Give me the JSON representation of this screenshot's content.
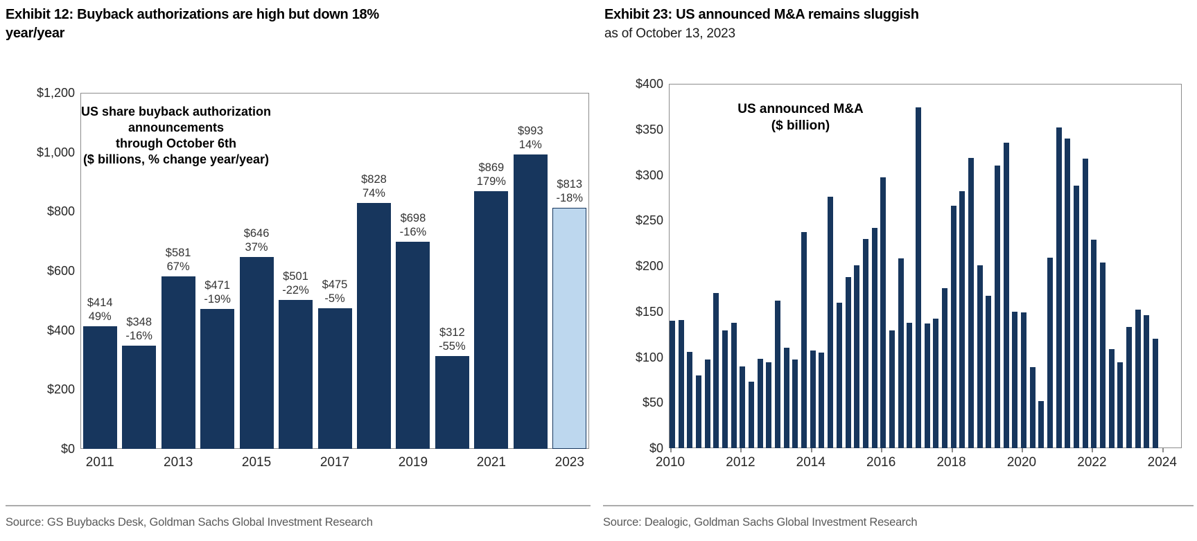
{
  "left_panel": {
    "title_line1": "Exhibit 12: Buyback authorizations are high but down 18%",
    "title_line2": "year/year",
    "source": "Source: GS Buybacks Desk, Goldman Sachs Global Investment Research"
  },
  "right_panel": {
    "title_line1": "Exhibit 23: US announced M&A remains sluggish",
    "subtitle": "as of October 13, 2023",
    "source": "Source: Dealogic, Goldman Sachs Global Investment Research"
  },
  "colors": {
    "bar_navy": "#17365D",
    "bar_light_blue": "#BDD7EE",
    "plot_border": "#8c8c8c",
    "axis_text": "#262626",
    "label_text": "#333333",
    "source_text": "#595959"
  },
  "chart_data": [
    {
      "type": "bar",
      "title": "US share buyback authorization announcements through October 6th ($ billions, % change year/year)",
      "note_lines": [
        "US share buyback authorization",
        "announcements",
        "through October 6th",
        "($ billions, % change year/year)"
      ],
      "categories": [
        "2011",
        "2012",
        "2013",
        "2014",
        "2015",
        "2016",
        "2017",
        "2018",
        "2019",
        "2020",
        "2021",
        "2022",
        "2023"
      ],
      "values": [
        414,
        348,
        581,
        471,
        646,
        501,
        475,
        828,
        698,
        312,
        869,
        993,
        813
      ],
      "bar_labels": [
        "$414",
        "$348",
        "$581",
        "$471",
        "$646",
        "$501",
        "$475",
        "$828",
        "$698",
        "$312",
        "$869",
        "$993",
        "$813"
      ],
      "pct_labels": [
        "49%",
        "-16%",
        "67%",
        "-19%",
        "37%",
        "-22%",
        "-5%",
        "74%",
        "-16%",
        "-55%",
        "179%",
        "14%",
        "-18%"
      ],
      "highlight_index": 12,
      "x_tick_labels": [
        "2011",
        "2013",
        "2015",
        "2017",
        "2019",
        "2021",
        "2023"
      ],
      "y_tick_labels": [
        "$0",
        "$200",
        "$400",
        "$600",
        "$800",
        "$1,000",
        "$1,200"
      ],
      "y_step": 200,
      "ylim": [
        0,
        1200
      ],
      "grid": false,
      "legend": null
    },
    {
      "type": "bar",
      "title": "US announced M&A ($ billion)",
      "note_lines": [
        "US announced M&A",
        "($ billion)"
      ],
      "x_frequency": "quarterly",
      "x_range": [
        "2010 Q1",
        "2023 Q4"
      ],
      "values": [
        140,
        141,
        106,
        80,
        97,
        170,
        129,
        138,
        90,
        73,
        98,
        94,
        162,
        110,
        97,
        237,
        107,
        105,
        276,
        160,
        188,
        201,
        230,
        242,
        297,
        129,
        208,
        138,
        374,
        137,
        142,
        176,
        266,
        282,
        319,
        201,
        167,
        310,
        335,
        150,
        149,
        89,
        52,
        209,
        352,
        340,
        288,
        318,
        229,
        204,
        109,
        94,
        133,
        152,
        146,
        120
      ],
      "x_tick_labels": [
        "2010",
        "2012",
        "2014",
        "2016",
        "2018",
        "2020",
        "2022",
        "2024"
      ],
      "y_tick_labels": [
        "$0",
        "$50",
        "$100",
        "$150",
        "$200",
        "$250",
        "$300",
        "$350",
        "$400"
      ],
      "y_step": 50,
      "ylim": [
        0,
        400
      ],
      "grid": false,
      "legend": null
    }
  ]
}
